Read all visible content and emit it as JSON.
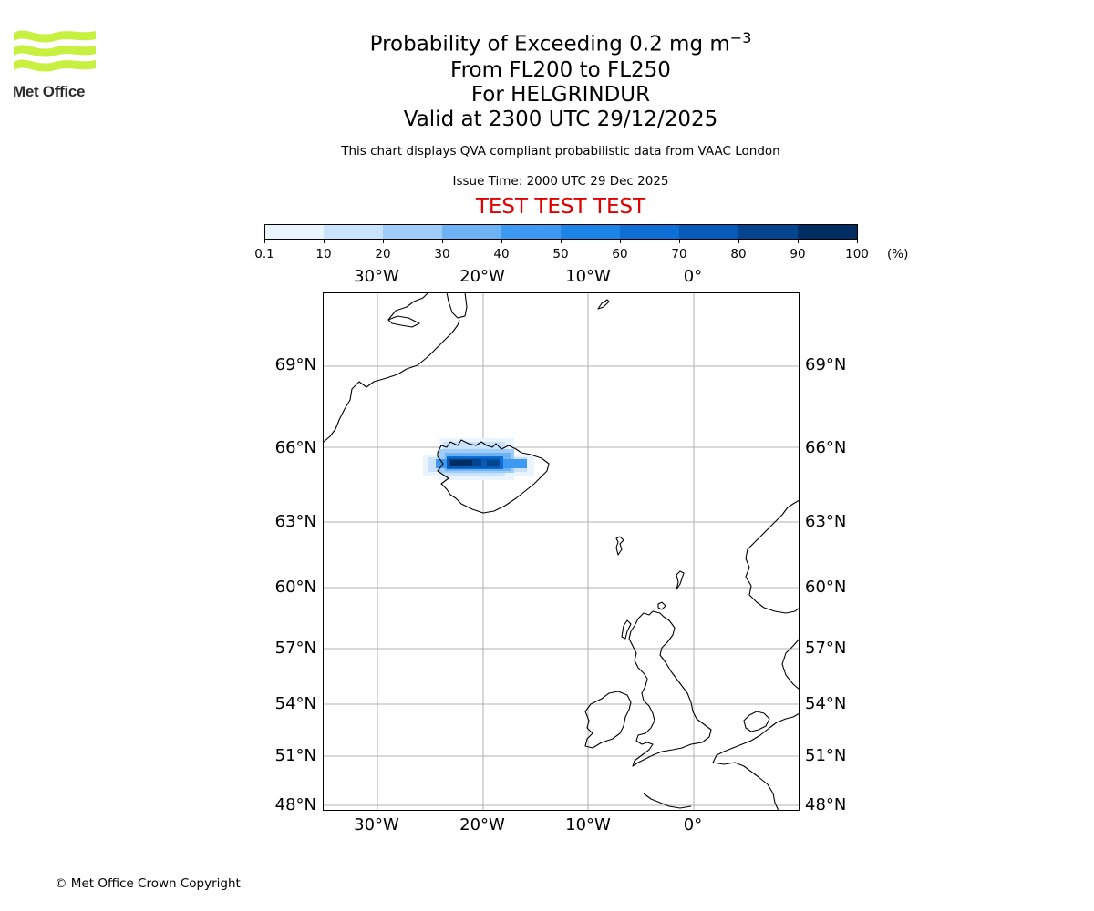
{
  "logo": {
    "text": "Met Office",
    "wave_color": "#c8f041"
  },
  "title": {
    "main": "Probability of Exceeding 0.2 mg m",
    "main_exponent": "−3",
    "level": "From FL200 to FL250",
    "volcano": "For HELGRINDUR",
    "valid": "Valid at 2300 UTC 29/12/2025"
  },
  "subtitle": "This chart displays QVA compliant probabilistic data from VAAC London",
  "issue_time": "Issue Time: 2000 UTC 29 Dec 2025",
  "test_banner": "TEST TEST TEST",
  "colorbar": {
    "ticks": [
      "0.1",
      "10",
      "20",
      "30",
      "40",
      "50",
      "60",
      "70",
      "80",
      "90",
      "100"
    ],
    "unit": "(%)",
    "colors": [
      "#eaf4fe",
      "#c8e3fb",
      "#9fccf8",
      "#6cb2f4",
      "#3e99f0",
      "#1c84e8",
      "#0d6fd6",
      "#075ab7",
      "#03458f",
      "#012e62"
    ]
  },
  "map": {
    "lon_labels": [
      "30°W",
      "20°W",
      "10°W",
      "0°"
    ],
    "lat_labels": [
      "69°N",
      "66°N",
      "63°N",
      "60°N",
      "57°N",
      "54°N",
      "51°N",
      "48°N"
    ],
    "grid_color": "#b0b0b0",
    "coast_color": "#000000"
  },
  "copyright": "© Met Office Crown Copyright"
}
